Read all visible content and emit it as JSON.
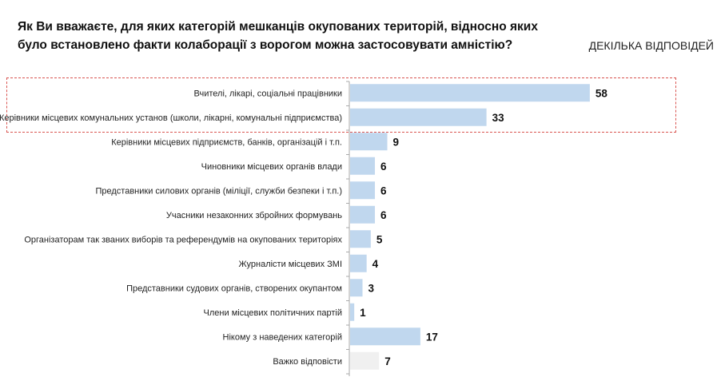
{
  "chart_data": {
    "type": "bar",
    "orientation": "horizontal",
    "title": "Як Ви вважаєте, для яких категорій мешканців окупованих територій, відносно яких було встановлено факти колаборації з ворогом можна застосовувати амністію?",
    "note": "ДЕКІЛЬКА ВІДПОВІДЕЙ",
    "categories": [
      "Вчителі, лікарі, соціальні працівники",
      "Керівники місцевих комунальних установ (школи, лікарні, комунальні підприємства)",
      "Керівники місцевих підприємств, банків, організацій і т.п.",
      "Чиновники місцевих органів влади",
      "Представники силових органів (міліції, служби безпеки і т.п.)",
      "Учасники незаконних збройних формувань",
      "Організаторам так званих виборів та референдумів на окупованих територіях",
      "Журналісти місцевих ЗМІ",
      "Представники судових органів, створених окупантом",
      "Члени місцевих політичних партій",
      "Нікому з наведених категорій",
      "Важко відповісти"
    ],
    "values": [
      58,
      33,
      9,
      6,
      6,
      6,
      5,
      4,
      3,
      1,
      17,
      7
    ],
    "colors": {
      "bar": "#c0d7ee",
      "last_bar": "#f0f0f0",
      "highlight_border": "#d9534f"
    },
    "highlighted": [
      0,
      1
    ]
  }
}
